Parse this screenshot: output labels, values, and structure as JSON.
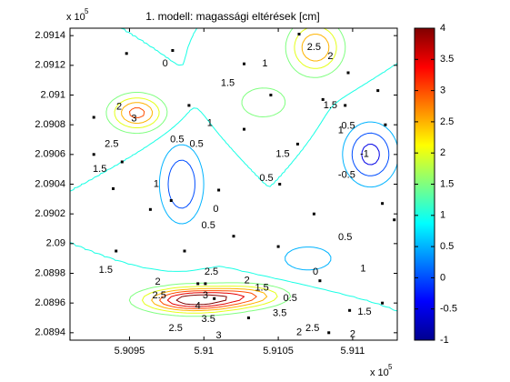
{
  "chart_data": {
    "type": "contour",
    "title": "1. modell: magassági eltérések [cm]",
    "x_exponent_label": "x 10",
    "x_exponent_power": "5",
    "y_exponent_label": "x 10",
    "y_exponent_power": "5",
    "xlim": [
      5.9091,
      5.9113
    ],
    "ylim": [
      2.08935,
      2.09145
    ],
    "x_ticks": [
      5.9095,
      5.91,
      5.9105,
      5.911
    ],
    "x_tick_labels": [
      "5.9095",
      "5.91",
      "5.9105",
      "5.911"
    ],
    "y_ticks": [
      2.0894,
      2.0896,
      2.0898,
      2.09,
      2.0902,
      2.0904,
      2.0906,
      2.0908,
      2.091,
      2.0912,
      2.0914
    ],
    "y_tick_labels": [
      "2.0894",
      "2.0896",
      "2.0898",
      "2.09",
      "2.0902",
      "2.0904",
      "2.0906",
      "2.0908",
      "2.091",
      "2.0912",
      "2.0914"
    ],
    "contour_levels": [
      -1,
      -0.5,
      0,
      0.5,
      1,
      1.5,
      2,
      2.5,
      3,
      3.5,
      4
    ],
    "colorbar": {
      "range": [
        -1,
        4
      ],
      "ticks": [
        -1,
        -0.5,
        0,
        0.5,
        1,
        1.5,
        2,
        2.5,
        3,
        3.5,
        4
      ],
      "tick_labels": [
        "-1",
        "-0.5",
        "0",
        "0.5",
        "1",
        "1.5",
        "2",
        "2.5",
        "3",
        "3.5",
        "4"
      ],
      "colormap": "jet"
    },
    "features": [
      {
        "x": 5.90993,
        "y": 2.08962,
        "amp": 3.4,
        "sx": 0.00022,
        "sy": 5.5e-05
      },
      {
        "x": 5.9103,
        "y": 2.08965,
        "amp": 1.6,
        "sx": 0.00018,
        "sy": 5e-05
      },
      {
        "x": 5.90955,
        "y": 2.09088,
        "amp": 2.2,
        "sx": 0.00012,
        "sy": 8e-05
      },
      {
        "x": 5.91075,
        "y": 2.09132,
        "amp": 2.0,
        "sx": 0.00012,
        "sy": 0.00012
      },
      {
        "x": 5.90985,
        "y": 2.0904,
        "amp": -1.5,
        "sx": 0.0001,
        "sy": 0.00018
      },
      {
        "x": 5.91112,
        "y": 2.0906,
        "amp": -1.7,
        "sx": 0.00012,
        "sy": 0.00014
      },
      {
        "x": 5.9107,
        "y": 2.0899,
        "amp": -0.8,
        "sx": 0.00016,
        "sy": 8e-05
      },
      {
        "x": 5.9104,
        "y": 2.09095,
        "amp": 0.8,
        "sx": 0.00015,
        "sy": 0.0001
      }
    ],
    "base_level": 1.0,
    "contour_labels": [
      {
        "text": "2.5",
        "x": 5.91074,
        "y": 2.09132
      },
      {
        "text": "2",
        "x": 5.91085,
        "y": 2.09126
      },
      {
        "text": "0",
        "x": 5.90974,
        "y": 2.09121
      },
      {
        "text": "1",
        "x": 5.91041,
        "y": 2.09121
      },
      {
        "text": "1.5",
        "x": 5.91016,
        "y": 2.09108
      },
      {
        "text": "1.5",
        "x": 5.91085,
        "y": 2.09093
      },
      {
        "text": "1",
        "x": 5.91092,
        "y": 2.09076
      },
      {
        "text": "0.5",
        "x": 5.91097,
        "y": 2.09079
      },
      {
        "text": "2",
        "x": 5.90943,
        "y": 2.09092
      },
      {
        "text": "3",
        "x": 5.90953,
        "y": 2.09084
      },
      {
        "text": "2.5",
        "x": 5.90938,
        "y": 2.09067
      },
      {
        "text": "1",
        "x": 5.91004,
        "y": 2.09081
      },
      {
        "text": "0.5",
        "x": 5.90982,
        "y": 2.0907
      },
      {
        "text": "0.5",
        "x": 5.90995,
        "y": 2.09067
      },
      {
        "text": "1.5",
        "x": 5.91053,
        "y": 2.0906
      },
      {
        "text": "-1",
        "x": 5.91108,
        "y": 2.0906
      },
      {
        "text": "-0.5",
        "x": 5.91096,
        "y": 2.09046
      },
      {
        "text": "0.5",
        "x": 5.91042,
        "y": 2.09044
      },
      {
        "text": "1.5",
        "x": 5.9093,
        "y": 2.0905
      },
      {
        "text": "1",
        "x": 5.90968,
        "y": 2.0904
      },
      {
        "text": "0",
        "x": 5.91008,
        "y": 2.09023
      },
      {
        "text": "0.5",
        "x": 5.91003,
        "y": 2.09012
      },
      {
        "text": "0.5",
        "x": 5.91095,
        "y": 2.09004
      },
      {
        "text": "1",
        "x": 5.91107,
        "y": 2.08983
      },
      {
        "text": "0",
        "x": 5.91075,
        "y": 2.08981
      },
      {
        "text": "1.5",
        "x": 5.90934,
        "y": 2.08982
      },
      {
        "text": "2",
        "x": 5.90969,
        "y": 2.08974
      },
      {
        "text": "2.5",
        "x": 5.9097,
        "y": 2.08965
      },
      {
        "text": "2.5",
        "x": 5.91005,
        "y": 2.08981
      },
      {
        "text": "2",
        "x": 5.91029,
        "y": 2.08975
      },
      {
        "text": "1.5",
        "x": 5.91039,
        "y": 2.0897
      },
      {
        "text": "0.5",
        "x": 5.91058,
        "y": 2.08963
      },
      {
        "text": "3",
        "x": 5.91001,
        "y": 2.08965
      },
      {
        "text": "4",
        "x": 5.90996,
        "y": 2.08958
      },
      {
        "text": "3.5",
        "x": 5.91003,
        "y": 2.08949
      },
      {
        "text": "3.5",
        "x": 5.91051,
        "y": 2.08953
      },
      {
        "text": "2.5",
        "x": 5.90981,
        "y": 2.08943
      },
      {
        "text": "3",
        "x": 5.9101,
        "y": 2.08938
      },
      {
        "text": "2.5",
        "x": 5.91073,
        "y": 2.08943
      },
      {
        "text": "2",
        "x": 5.911,
        "y": 2.08939
      },
      {
        "text": "1.5",
        "x": 5.91108,
        "y": 2.08954
      },
      {
        "text": "2",
        "x": 5.91064,
        "y": 2.0894
      }
    ],
    "sample_points": [
      [
        5.90979,
        2.0913
      ],
      [
        5.91027,
        2.09121
      ],
      [
        5.91064,
        2.09141
      ],
      [
        5.90948,
        2.09128
      ],
      [
        5.91097,
        2.09115
      ],
      [
        5.91117,
        2.09103
      ],
      [
        5.90926,
        2.09085
      ],
      [
        5.9099,
        2.09093
      ],
      [
        5.91045,
        2.091
      ],
      [
        5.9108,
        2.09097
      ],
      [
        5.91095,
        2.09093
      ],
      [
        5.91122,
        2.0908
      ],
      [
        5.90926,
        2.0906
      ],
      [
        5.90945,
        2.09055
      ],
      [
        5.91027,
        2.09077
      ],
      [
        5.91063,
        2.09067
      ],
      [
        5.90939,
        2.09037
      ],
      [
        5.90978,
        2.09029
      ],
      [
        5.9101,
        2.09036
      ],
      [
        5.91051,
        2.0904
      ],
      [
        5.9112,
        2.09027
      ],
      [
        5.90964,
        2.09023
      ],
      [
        5.91074,
        2.0902
      ],
      [
        5.91128,
        2.09016
      ],
      [
        5.90941,
        2.08995
      ],
      [
        5.90987,
        2.08995
      ],
      [
        5.9102,
        2.09005
      ],
      [
        5.9105,
        2.08998
      ],
      [
        5.91078,
        2.08975
      ],
      [
        5.90996,
        2.08973
      ],
      [
        5.9103,
        2.0895
      ],
      [
        5.9112,
        2.0896
      ],
      [
        5.91135,
        2.0898
      ],
      [
        5.91007,
        2.08963
      ],
      [
        5.91001,
        2.08973
      ],
      [
        5.91084,
        2.0894
      ],
      [
        5.91098,
        2.08955
      ]
    ]
  }
}
